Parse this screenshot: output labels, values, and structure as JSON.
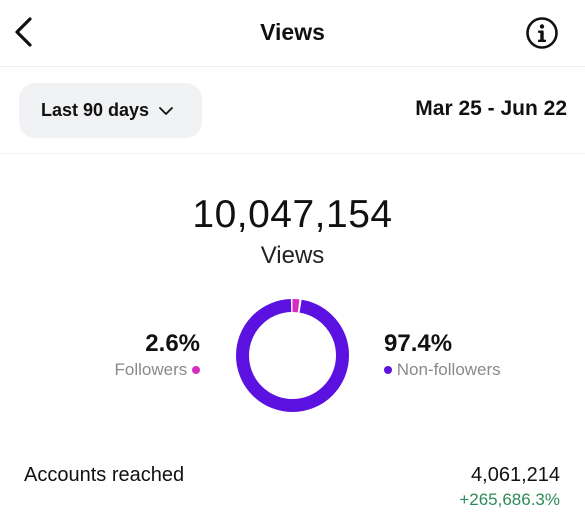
{
  "header": {
    "title": "Views",
    "back_icon": "chevron-left-icon",
    "info_icon": "info-circle-icon"
  },
  "filter": {
    "range_label": "Last 90 days",
    "range_icon": "chevron-down-icon",
    "date_range": "Mar 25 - Jun 22"
  },
  "summary": {
    "total": "10,047,154",
    "label": "Views"
  },
  "breakdown": {
    "followers": {
      "percent": "2.6%",
      "label": "Followers",
      "value": 2.6,
      "color": "#d62fc0"
    },
    "non_followers": {
      "percent": "97.4%",
      "label": "Non-followers",
      "value": 97.4,
      "color": "#5b11e0"
    }
  },
  "metrics": [
    {
      "label": "Accounts reached",
      "value": "4,061,214",
      "change": "+265,686.3%",
      "change_color": "#2e8b57"
    }
  ]
}
